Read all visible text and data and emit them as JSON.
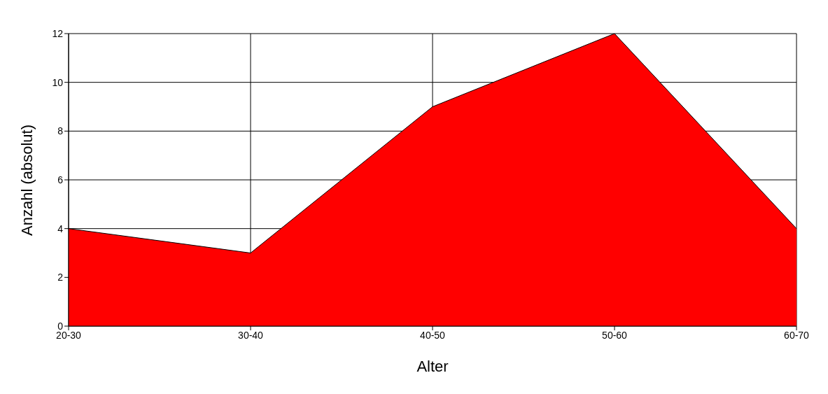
{
  "chart_data": {
    "type": "area",
    "xlabel": "Alter",
    "ylabel": "Anzahl (absolut)",
    "categories": [
      "20-30",
      "30-40",
      "40-50",
      "50-60",
      "60-70"
    ],
    "series": [
      {
        "color": "#ff0000",
        "values": [
          4,
          3,
          9,
          12,
          4
        ]
      }
    ],
    "ylim": [
      0,
      12
    ],
    "yticks": [
      0,
      2,
      4,
      6,
      8,
      10,
      12
    ],
    "grid": true
  }
}
